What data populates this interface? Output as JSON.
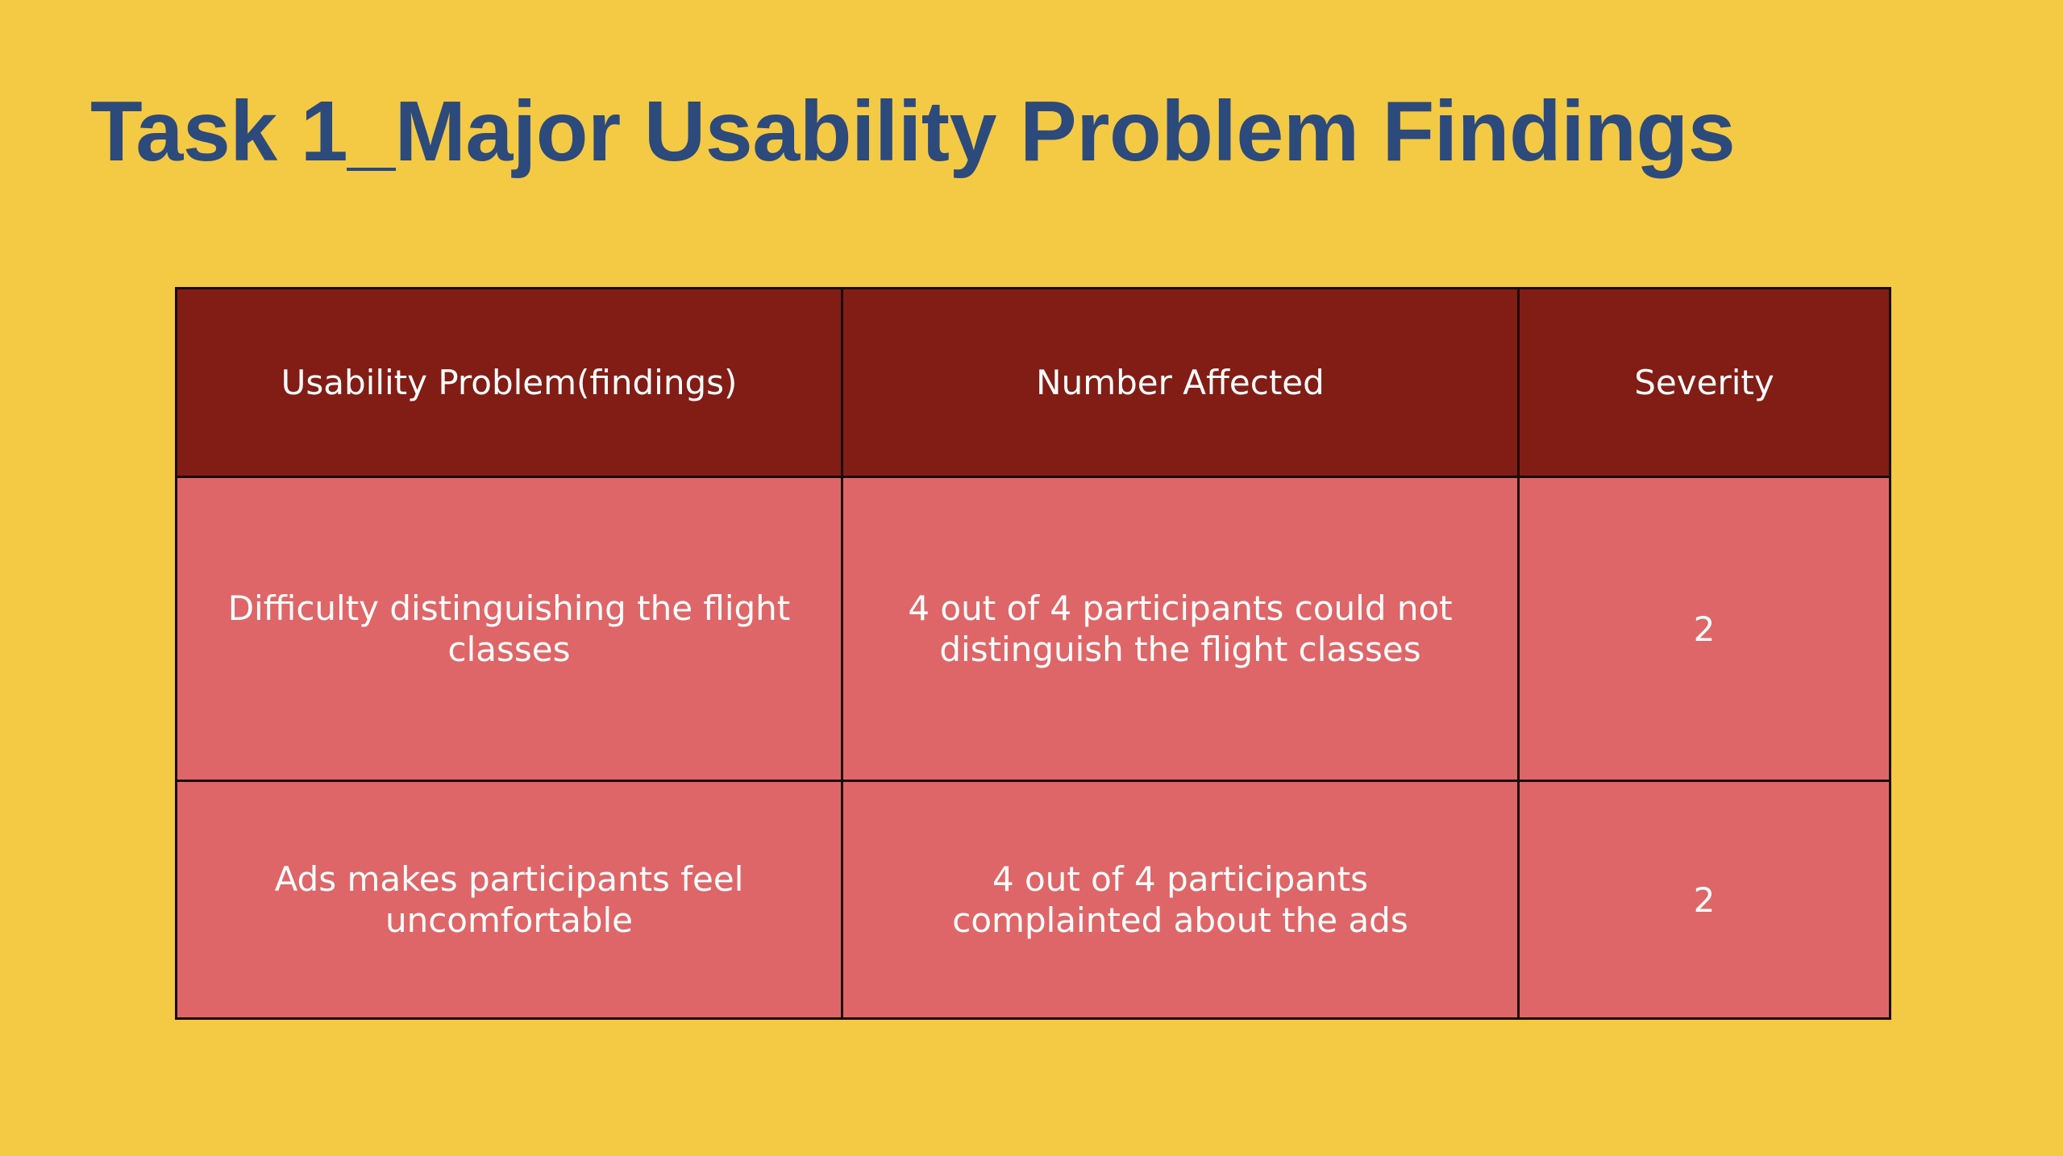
{
  "slide": {
    "title": "Task 1_Major Usability Problem Findings"
  },
  "table": {
    "headers": [
      "Usability Problem(findings)",
      "Number Affected",
      "Severity"
    ],
    "rows": [
      {
        "problem": "Difficulty distinguishing the flight classes",
        "affected": "4 out of 4 participants could not distinguish the flight classes",
        "severity": "2"
      },
      {
        "problem": "Ads makes participants feel uncomfortable",
        "affected": "4 out of 4  participants complainted about the ads",
        "severity": "2"
      }
    ]
  },
  "colors": {
    "background": "#f4c944",
    "title": "#2c4a7c",
    "header_fill": "#821d16",
    "cell_fill": "#df6668",
    "text_light": "#ffffff"
  }
}
